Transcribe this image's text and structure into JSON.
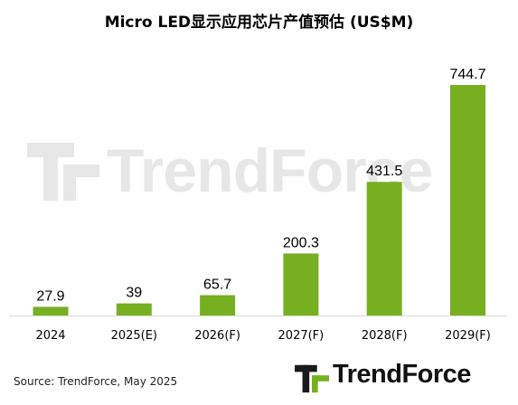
{
  "chart_data": {
    "type": "bar",
    "title": "Micro LED显示应用芯片产值预估 (US$M)",
    "categories": [
      "2024",
      "2025(E)",
      "2026(F)",
      "2027(F)",
      "2028(F)",
      "2029(F)"
    ],
    "values": [
      27.9,
      39,
      65.7,
      200.3,
      431.5,
      744.7
    ],
    "value_labels": [
      "27.9",
      "39",
      "65.7",
      "200.3",
      "431.5",
      "744.7"
    ],
    "bar_color": "#76b021",
    "ylim": [
      0,
      800
    ],
    "grid": false,
    "legend": "none"
  },
  "source": "Source: TrendForce, May 2025",
  "brand": {
    "name": "TrendForce",
    "color": "#76b021"
  },
  "watermark": {
    "text": "TrendForce"
  }
}
